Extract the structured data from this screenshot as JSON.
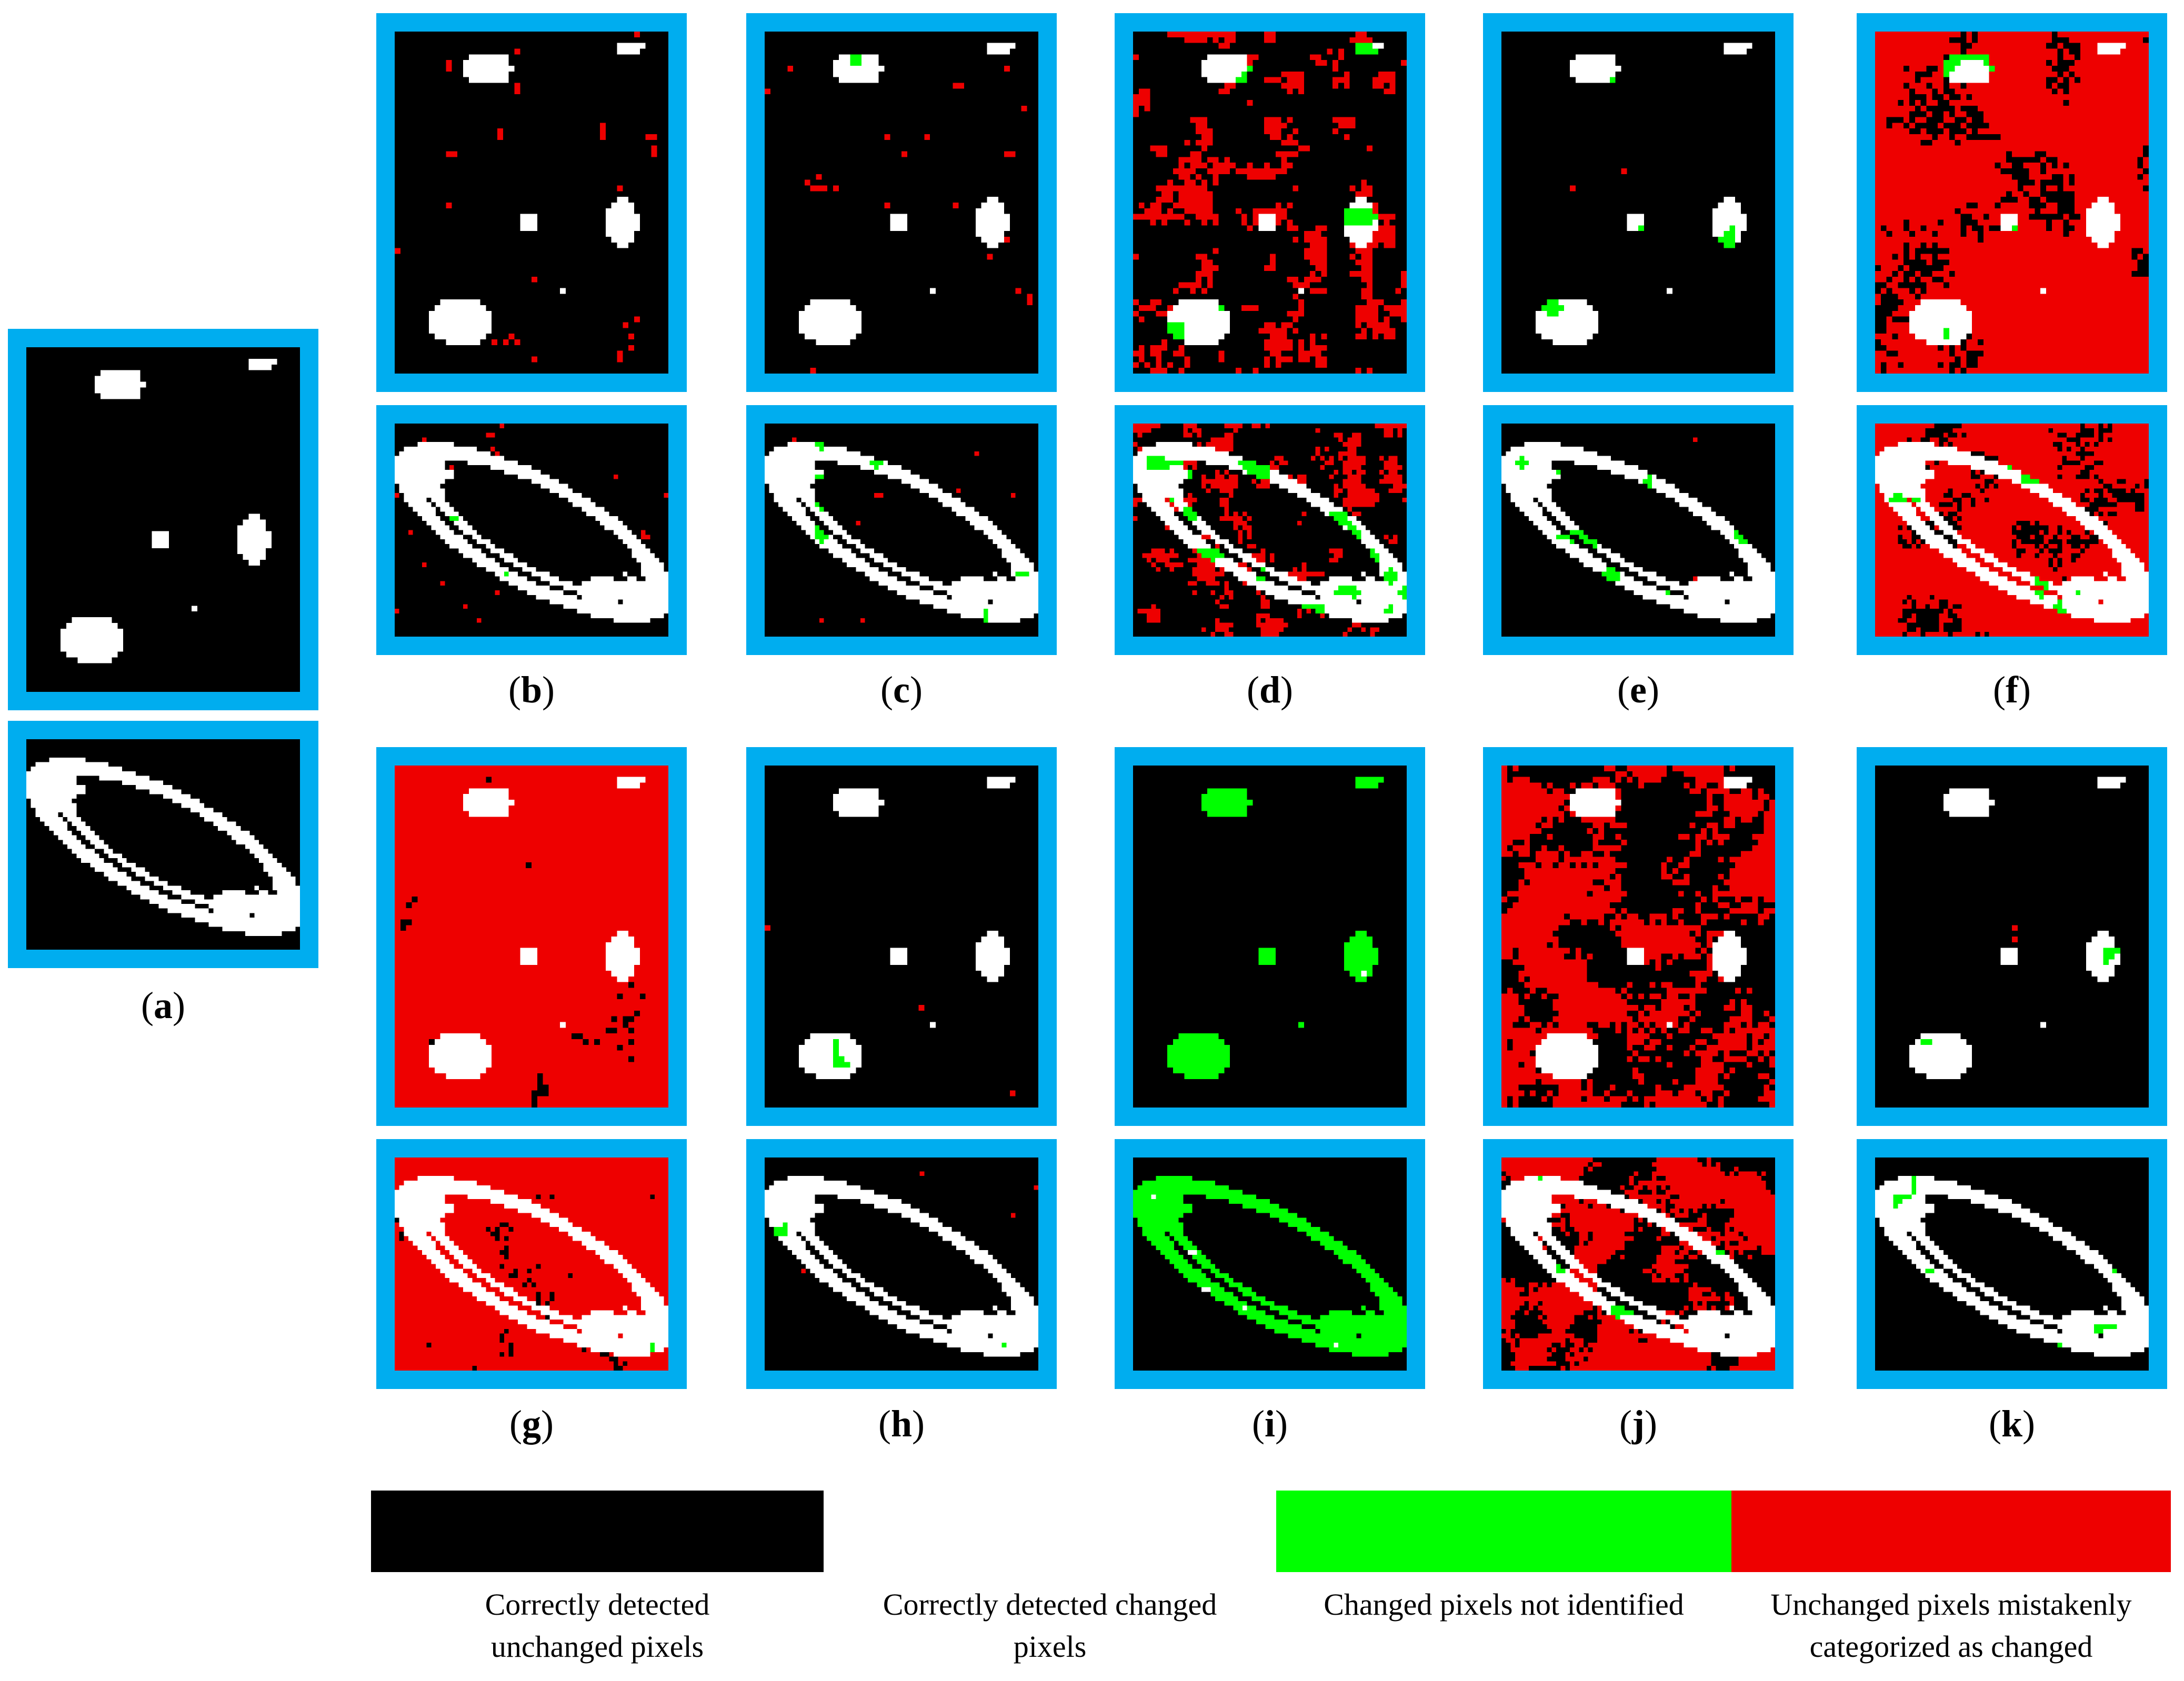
{
  "panel_labels": {
    "a": "a",
    "b": "b",
    "c": "c",
    "d": "d",
    "e": "e",
    "f": "f",
    "g": "g",
    "h": "h",
    "i": "i",
    "j": "j",
    "k": "k"
  },
  "legend": [
    {
      "color": "#000000",
      "label_line1": "Correctly detected",
      "label_line2": "unchanged pixels"
    },
    {
      "color": "#ffffff",
      "label_line1": "Correctly detected changed",
      "label_line2": "pixels"
    },
    {
      "color": "#00FF00",
      "label_line1": "Changed pixels not identified",
      "label_line2": ""
    },
    {
      "color": "#EE0000",
      "label_line1": "Unchanged pixels mistakenly",
      "label_line2": "categorized as changed"
    }
  ],
  "colors": {
    "frame": "#00ADEF",
    "unchanged": "#000000",
    "changed": "#ffffff",
    "missed": "#00FF00",
    "false_alarm": "#EE0000"
  }
}
